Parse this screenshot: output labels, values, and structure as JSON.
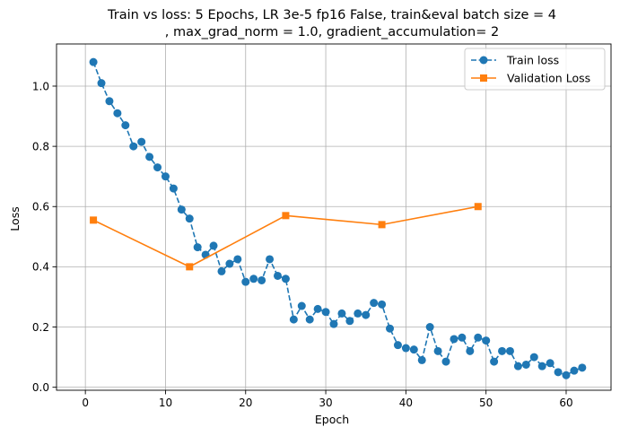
{
  "chart_data": {
    "type": "line",
    "title_line1": "Train vs loss: 5 Epochs, LR 3e-5 fp16 False, train&eval batch size = 4",
    "title_line2": ", max_grad_norm = 1.0, gradient_accumulation= 2",
    "xlabel": "Epoch",
    "ylabel": "Loss",
    "xlim": [
      -3.6,
      65.6
    ],
    "ylim": [
      -0.01,
      1.14
    ],
    "xticks": [
      0,
      10,
      20,
      30,
      40,
      50,
      60
    ],
    "xtick_labels": [
      "0",
      "10",
      "20",
      "30",
      "40",
      "50",
      "60"
    ],
    "yticks": [
      0.0,
      0.2,
      0.4,
      0.6,
      0.8,
      1.0
    ],
    "ytick_labels": [
      "0.0",
      "0.2",
      "0.4",
      "0.6",
      "0.8",
      "1.0"
    ],
    "grid": true,
    "legend_position": "top-right",
    "series": [
      {
        "name": "Train loss",
        "color": "#1f77b4",
        "line_style": "dashed",
        "marker": "circle",
        "x": [
          1,
          2,
          3,
          4,
          5,
          6,
          7,
          8,
          9,
          10,
          11,
          12,
          13,
          14,
          15,
          16,
          17,
          18,
          19,
          20,
          21,
          22,
          23,
          24,
          25,
          26,
          27,
          28,
          29,
          30,
          31,
          32,
          33,
          34,
          35,
          36,
          37,
          38,
          39,
          40,
          41,
          42,
          43,
          44,
          45,
          46,
          47,
          48,
          49,
          50,
          51,
          52,
          53,
          54,
          55,
          56,
          57,
          58,
          59,
          60,
          61,
          62
        ],
        "y": [
          1.08,
          1.01,
          0.95,
          0.91,
          0.87,
          0.8,
          0.815,
          0.765,
          0.73,
          0.7,
          0.66,
          0.59,
          0.56,
          0.465,
          0.44,
          0.47,
          0.385,
          0.41,
          0.425,
          0.35,
          0.36,
          0.355,
          0.425,
          0.37,
          0.36,
          0.225,
          0.27,
          0.225,
          0.26,
          0.25,
          0.21,
          0.245,
          0.22,
          0.245,
          0.24,
          0.28,
          0.275,
          0.195,
          0.14,
          0.13,
          0.125,
          0.09,
          0.2,
          0.12,
          0.085,
          0.16,
          0.165,
          0.12,
          0.165,
          0.155,
          0.085,
          0.12,
          0.12,
          0.07,
          0.075,
          0.1,
          0.07,
          0.08,
          0.05,
          0.04,
          0.055,
          0.065
        ]
      },
      {
        "name": "Validation Loss",
        "color": "#ff7f0e",
        "line_style": "solid",
        "marker": "square",
        "x": [
          1,
          13,
          25,
          37,
          49
        ],
        "y": [
          0.555,
          0.4,
          0.57,
          0.54,
          0.6
        ]
      }
    ]
  }
}
